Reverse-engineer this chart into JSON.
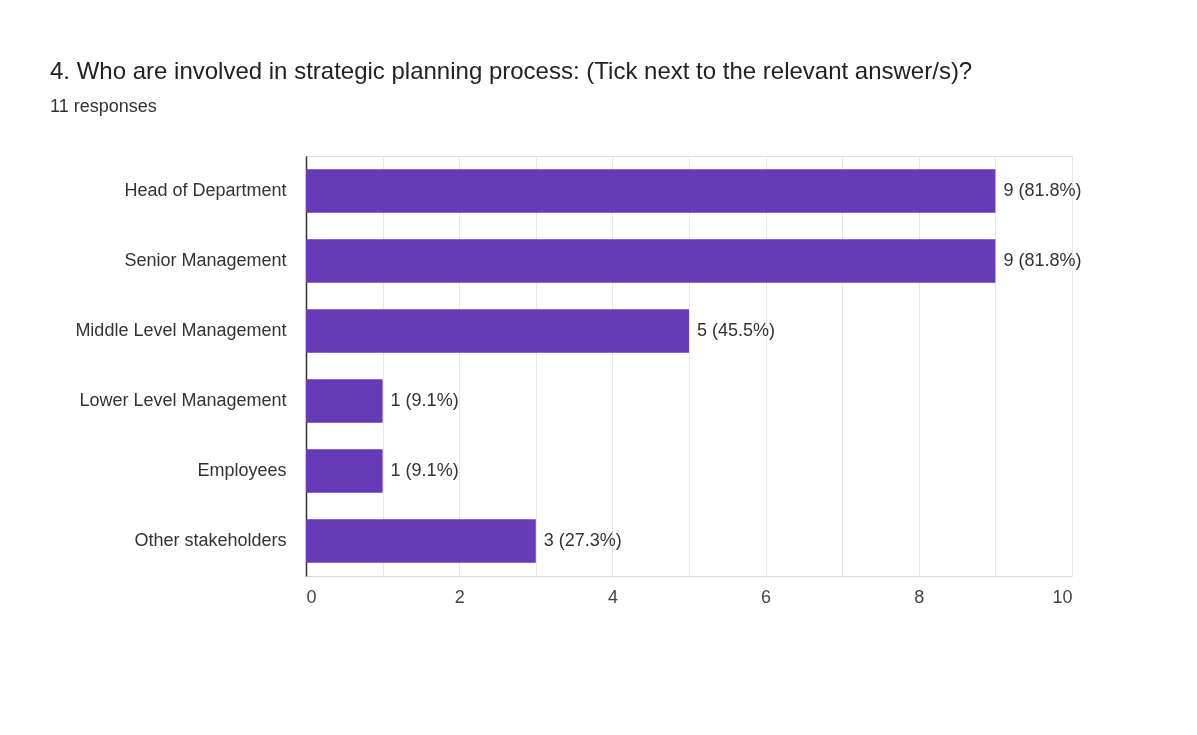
{
  "chart_data": {
    "type": "bar",
    "orientation": "horizontal",
    "title": "4. Who are involved in strategic planning process: (Tick next to the relevant answer/s)?",
    "subtitle": "11 responses",
    "categories": [
      "Head of Department",
      "Senior Management",
      "Middle Level Management",
      "Lower Level Management",
      "Employees",
      "Other stakeholders"
    ],
    "series": [
      {
        "color": "#673ab7",
        "values": [
          9,
          9,
          5,
          1,
          1,
          3
        ],
        "value_labels": [
          "9 (81.8%)",
          "9 (81.8%)",
          "5 (45.5%)",
          "1 (9.1%)",
          "1 (9.1%)",
          "3 (27.3%)"
        ]
      }
    ],
    "xlim": [
      0,
      10
    ],
    "xticks": [
      0,
      {
        "value": 1,
        "label": null
      },
      2,
      {
        "value": 3,
        "label": null
      },
      4,
      {
        "value": 5,
        "label": null
      },
      6,
      {
        "value": 7,
        "label": null
      },
      8,
      {
        "value": 9,
        "label": null
      },
      10
    ],
    "grid": true
  }
}
